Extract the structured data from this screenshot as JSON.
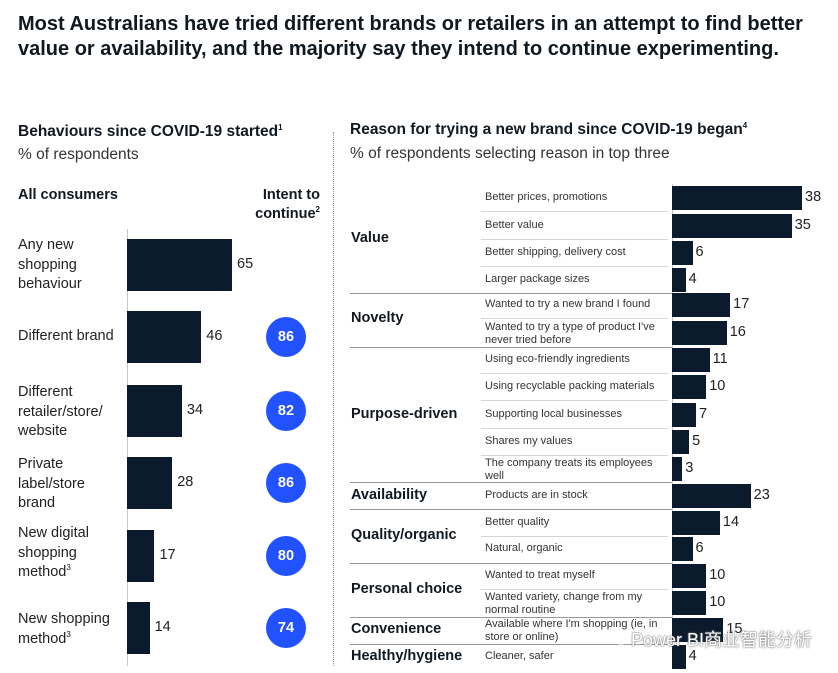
{
  "headline": "Most Australians have tried different brands or retailers in an attempt to find better value or availability, and the majority say they intend to continue experimenting.",
  "left": {
    "title": "Behaviours since COVID-19 started",
    "title_note": "1",
    "subtitle": "% of respondents",
    "col_label": "All consumers",
    "intent_label": "Intent to continue",
    "intent_note": "2",
    "colors": {
      "bar": "#0b1a2c",
      "circle": "#2251ff"
    }
  },
  "right": {
    "title": "Reason for trying a new brand since COVID-19 began",
    "title_note": "4",
    "subtitle": "% of respondents selecting reason in top three"
  },
  "chart_data": [
    {
      "type": "bar",
      "orientation": "horizontal",
      "categories": [
        "Any new shopping behaviour",
        "Different brand",
        "Different retailer/store/ website",
        "Private label/store brand",
        "New digital shopping method",
        "New shopping method"
      ],
      "category_notes": [
        "",
        "",
        "",
        "",
        "3",
        "3"
      ],
      "values": [
        65,
        46,
        34,
        28,
        17,
        14
      ],
      "intent_to_continue": [
        null,
        86,
        82,
        86,
        80,
        74
      ],
      "xlim": [
        0,
        100
      ]
    },
    {
      "type": "bar",
      "orientation": "horizontal",
      "groups": [
        {
          "name": "Value",
          "items": [
            {
              "label": "Better prices, promotions",
              "value": 38
            },
            {
              "label": "Better value",
              "value": 35
            },
            {
              "label": "Better shipping, delivery cost",
              "value": 6
            },
            {
              "label": "Larger package sizes",
              "value": 4
            }
          ]
        },
        {
          "name": "Novelty",
          "items": [
            {
              "label": "Wanted to try a new brand I found",
              "value": 17
            },
            {
              "label": "Wanted to try a type of product I've never tried before",
              "value": 16
            }
          ]
        },
        {
          "name": "Purpose-driven",
          "items": [
            {
              "label": "Using eco-friendly ingredients",
              "value": 11
            },
            {
              "label": "Using recyclable packing materials",
              "value": 10
            },
            {
              "label": "Supporting local businesses",
              "value": 7
            },
            {
              "label": "Shares my values",
              "value": 5
            },
            {
              "label": "The company treats its employees well",
              "value": 3
            }
          ]
        },
        {
          "name": "Availability",
          "items": [
            {
              "label": "Products are in stock",
              "value": 23
            }
          ]
        },
        {
          "name": "Quality/organic",
          "items": [
            {
              "label": "Better quality",
              "value": 14
            },
            {
              "label": "Natural, organic",
              "value": 6
            }
          ]
        },
        {
          "name": "Personal choice",
          "items": [
            {
              "label": "Wanted to treat myself",
              "value": 10
            },
            {
              "label": "Wanted variety, change from my normal routine",
              "value": 10
            }
          ]
        },
        {
          "name": "Convenience",
          "items": [
            {
              "label": "Available where I'm shopping (ie, in store or online)",
              "value": 15
            }
          ]
        },
        {
          "name": "Healthy/hygiene",
          "items": [
            {
              "label": "Cleaner, safer",
              "value": 4
            }
          ]
        }
      ],
      "xlim": [
        0,
        38
      ]
    }
  ],
  "watermark": "Power BI商业智能分析"
}
